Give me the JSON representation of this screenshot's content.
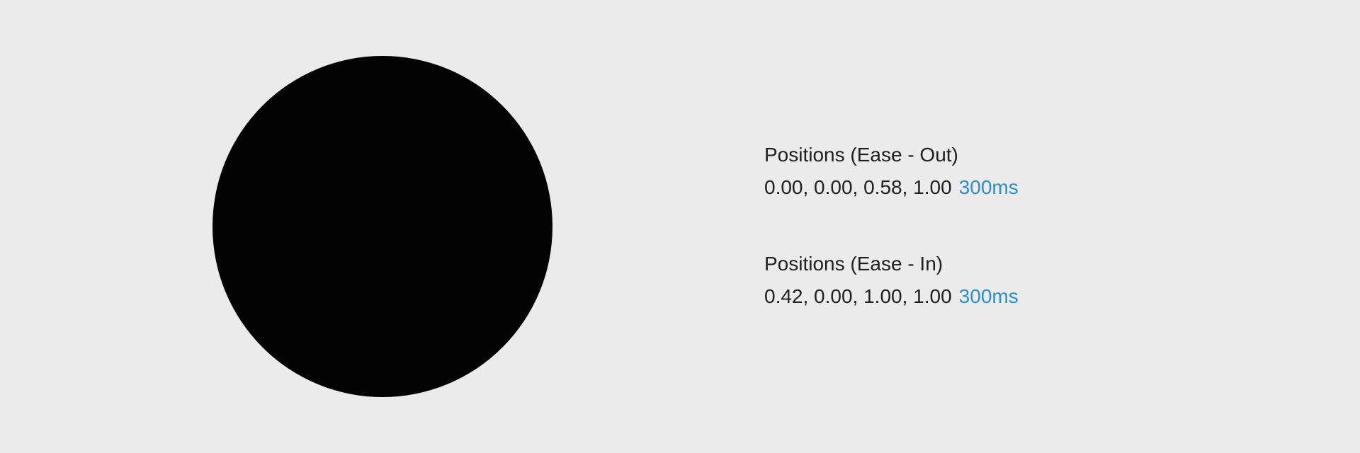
{
  "graphic": {
    "circle_color": "#030303",
    "background_color": "#ebebeb"
  },
  "curves": [
    {
      "title": "Positions (Ease - Out)",
      "values": "0.00, 0.00, 0.58, 1.00",
      "duration": "300ms",
      "duration_color": "#2b8fcd"
    },
    {
      "title": "Positions (Ease - In)",
      "values": "0.42, 0.00, 1.00, 1.00",
      "duration": "300ms",
      "duration_color": "#2b8fcd"
    }
  ]
}
